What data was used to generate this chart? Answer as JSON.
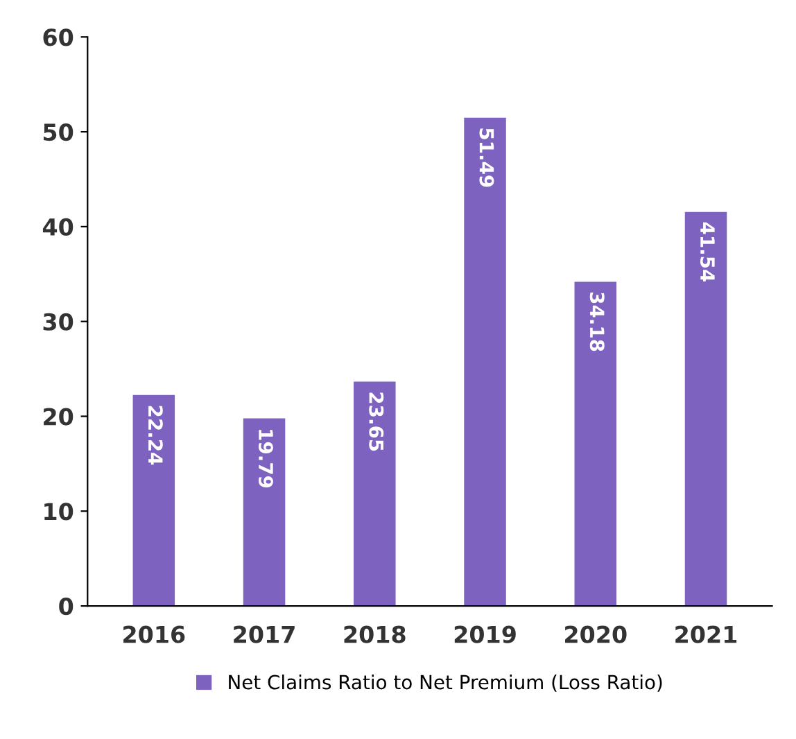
{
  "chart_data": {
    "type": "bar",
    "categories": [
      "2016",
      "2017",
      "2018",
      "2019",
      "2020",
      "2021"
    ],
    "series": [
      {
        "name": "Net Claims Ratio to Net Premium (Loss Ratio)",
        "color": "#7d62c0",
        "values": [
          22.24,
          19.79,
          23.65,
          51.49,
          34.18,
          41.54
        ]
      }
    ],
    "ylim": [
      0,
      60
    ],
    "yticks": [
      0,
      10,
      20,
      30,
      40,
      50,
      60
    ],
    "data_labels": true,
    "grid": false,
    "legend": "bottom"
  }
}
